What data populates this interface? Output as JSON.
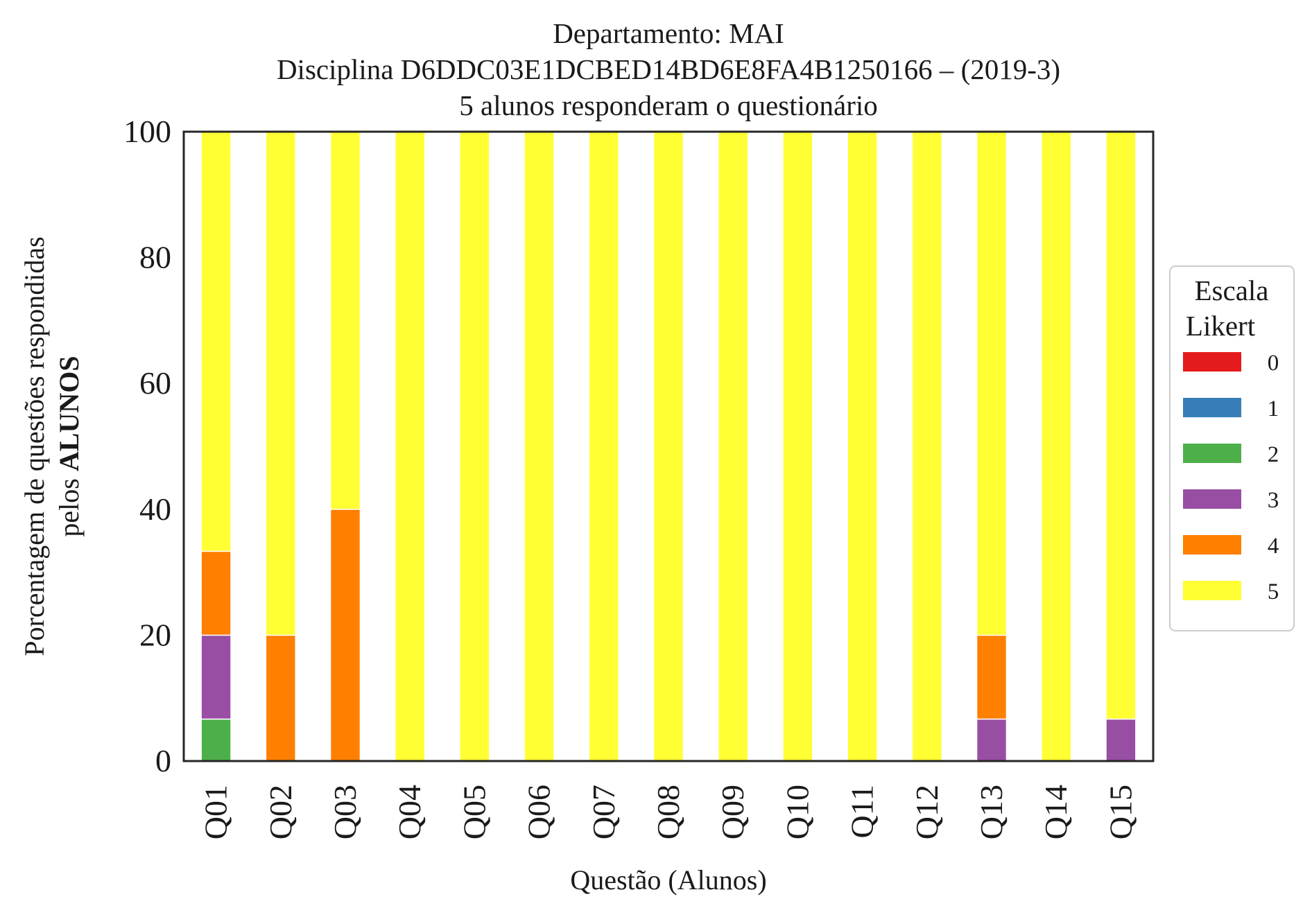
{
  "chart_data": {
    "type": "bar",
    "stacked": true,
    "title_lines": [
      "Departamento: MAI",
      "Disciplina D6DDC03E1DCBED14BD6E8FA4B1250166 – (2019-3)",
      "5 alunos responderam o questionário"
    ],
    "xlabel": "Questão (Alunos)",
    "ylabel_line1": "Porcentagem de questões respondidas",
    "ylabel_line2_prefix": "pelos ",
    "ylabel_line2_bold": "ALUNOS",
    "ylim": [
      0,
      100
    ],
    "yticks": [
      "0",
      "20",
      "40",
      "60",
      "80",
      "100"
    ],
    "grid": false,
    "legend_position": "right",
    "legend_title_lines": [
      "Escala",
      "Likert"
    ],
    "categories": [
      "Q01",
      "Q02",
      "Q03",
      "Q04",
      "Q05",
      "Q06",
      "Q07",
      "Q08",
      "Q09",
      "Q10",
      "Q11",
      "Q12",
      "Q13",
      "Q14",
      "Q15"
    ],
    "series": [
      {
        "name": "0",
        "color": "#e41a1c",
        "values": [
          0,
          0,
          0,
          0,
          0,
          0,
          0,
          0,
          0,
          0,
          0,
          0,
          0,
          0,
          0
        ]
      },
      {
        "name": "1",
        "color": "#377eb8",
        "values": [
          0,
          0,
          0,
          0,
          0,
          0,
          0,
          0,
          0,
          0,
          0,
          0,
          0,
          0,
          0
        ]
      },
      {
        "name": "2",
        "color": "#4daf4a",
        "values": [
          6.67,
          0,
          0,
          0,
          0,
          0,
          0,
          0,
          0,
          0,
          0,
          0,
          0,
          0,
          0
        ]
      },
      {
        "name": "3",
        "color": "#984ea3",
        "values": [
          13.33,
          0,
          0,
          0,
          0,
          0,
          0,
          0,
          0,
          0,
          0,
          0,
          6.67,
          0,
          6.67
        ]
      },
      {
        "name": "4",
        "color": "#ff7f00",
        "values": [
          13.33,
          20,
          40,
          0,
          0,
          0,
          0,
          0,
          0,
          0,
          0,
          0,
          13.33,
          0,
          0
        ]
      },
      {
        "name": "5",
        "color": "#ffff33",
        "values": [
          66.67,
          80,
          60,
          100,
          100,
          100,
          100,
          100,
          100,
          100,
          100,
          100,
          80,
          100,
          93.33
        ]
      }
    ]
  }
}
